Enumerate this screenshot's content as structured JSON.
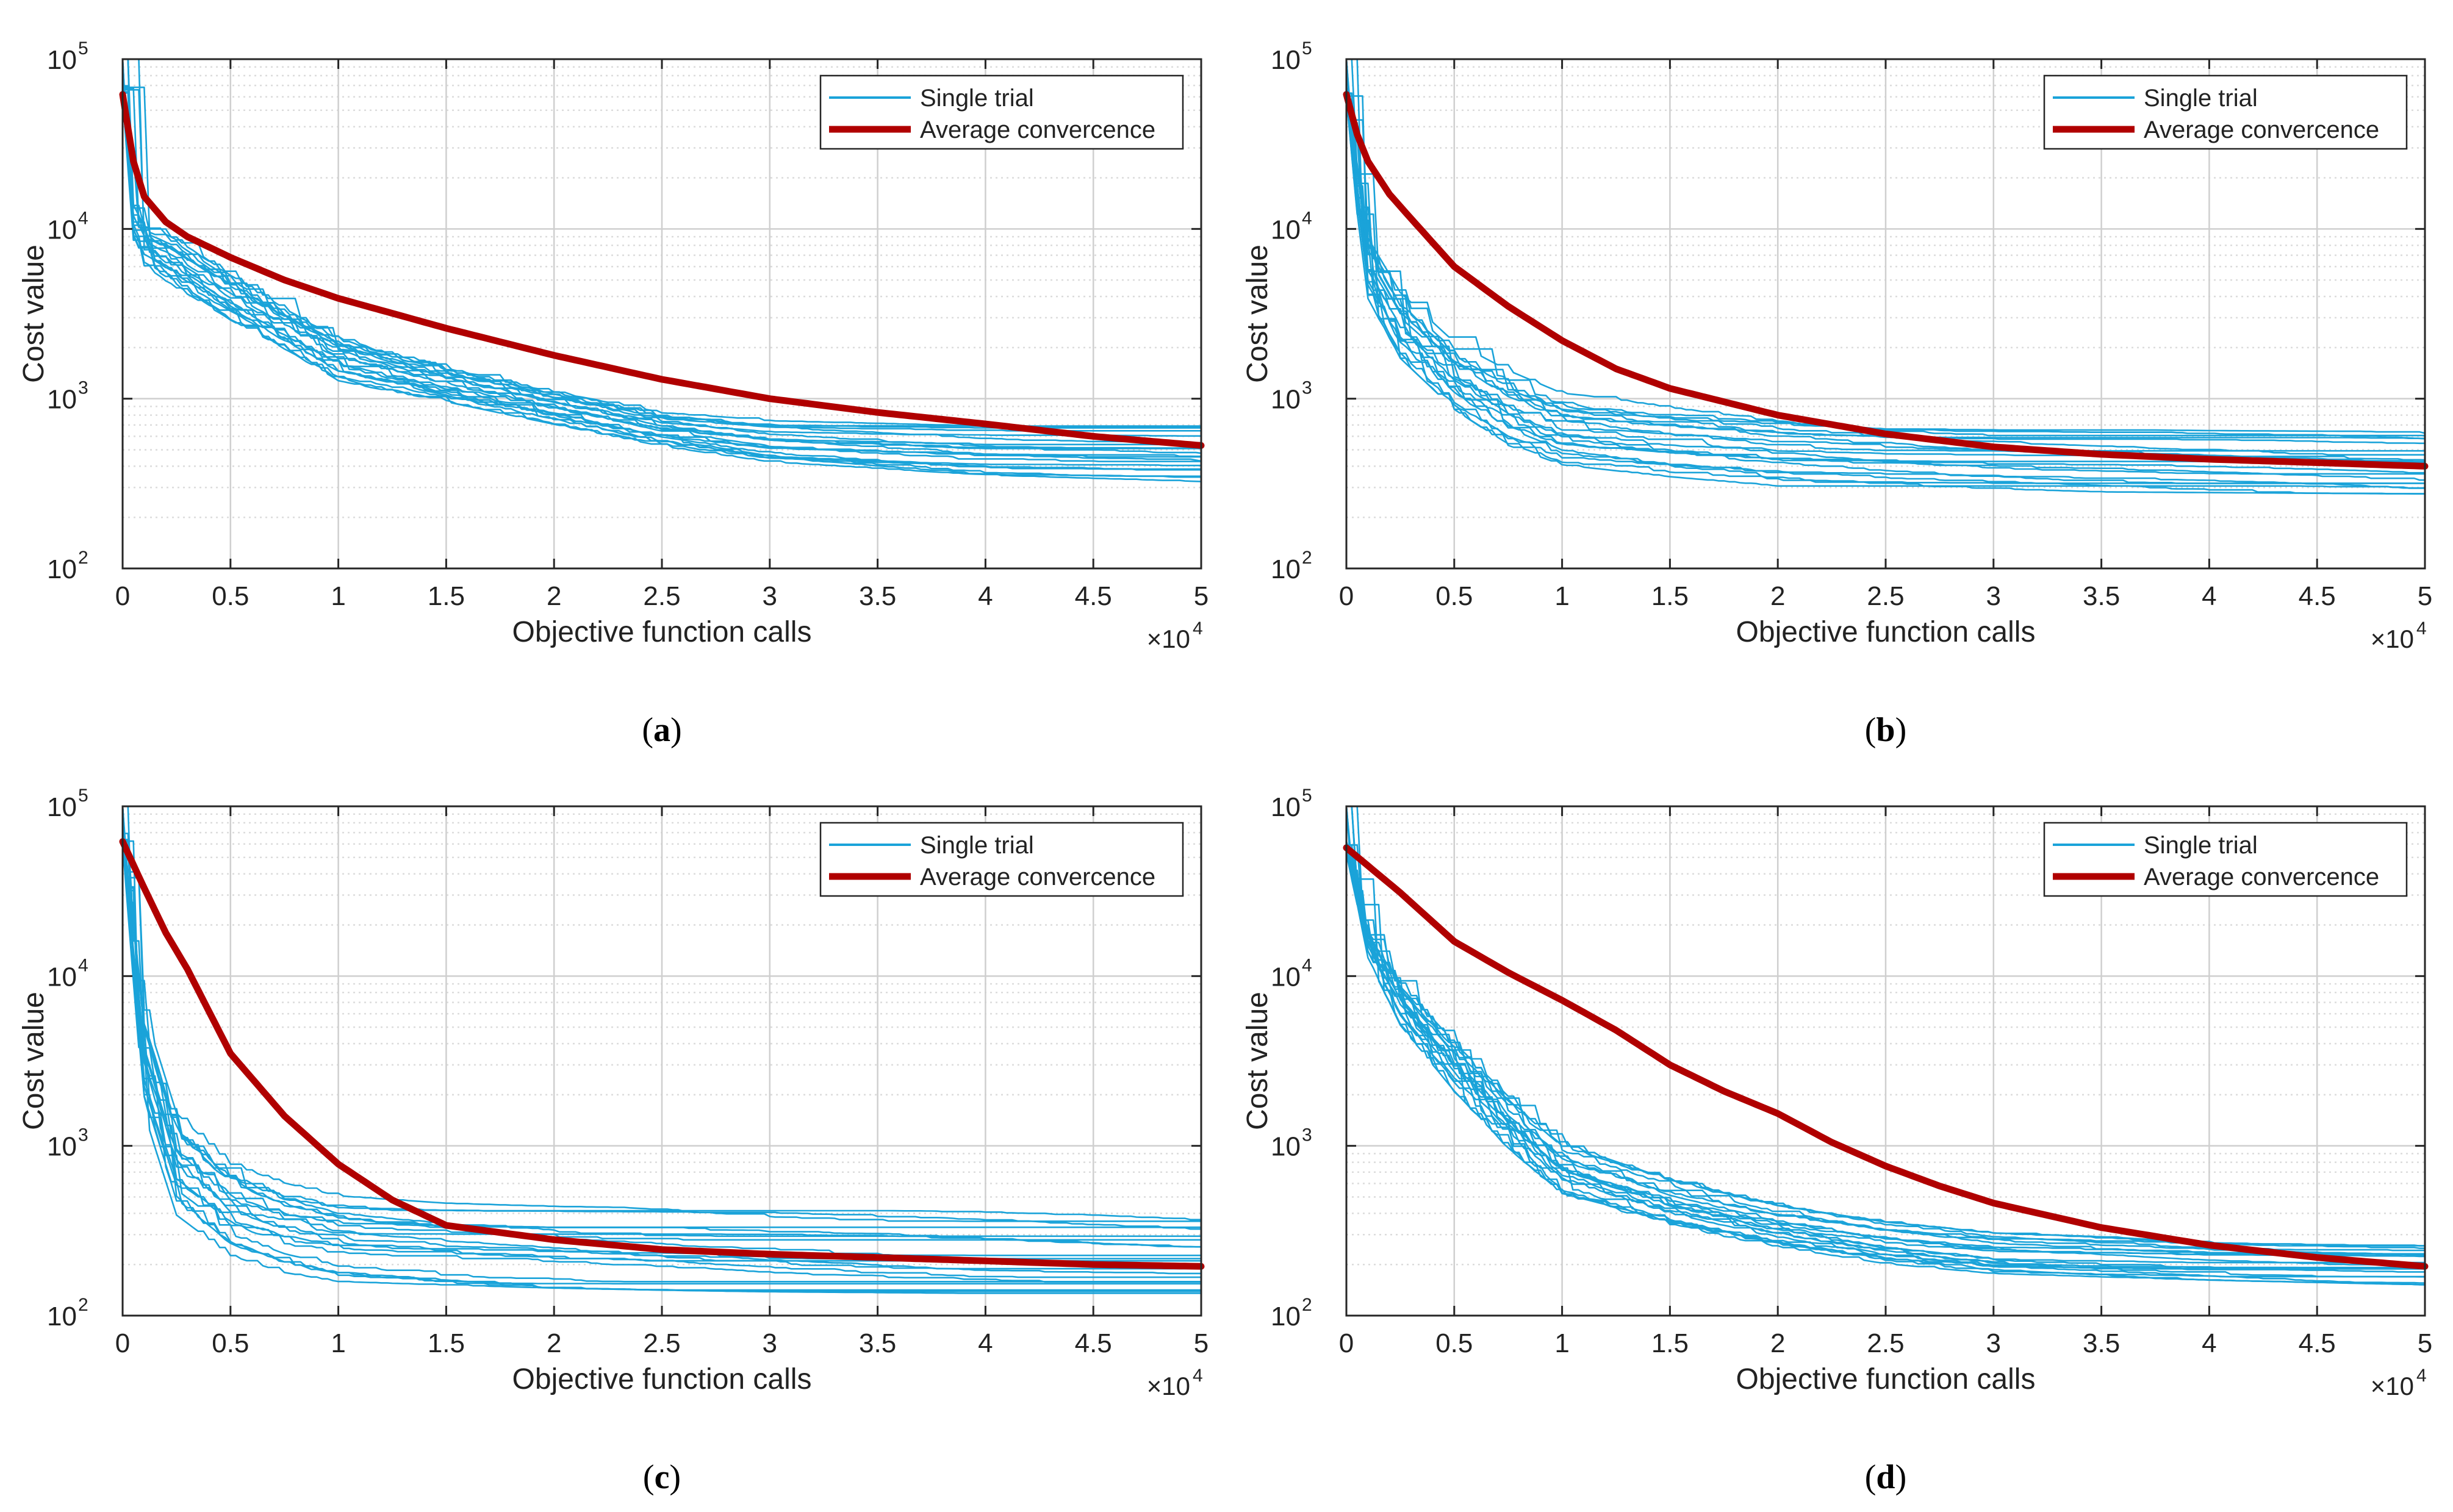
{
  "figure": {
    "panels": [
      {
        "caption_letter": "a"
      },
      {
        "caption_letter": "b"
      },
      {
        "caption_letter": "c"
      },
      {
        "caption_letter": "d"
      }
    ]
  },
  "colors": {
    "single_trial": "#1aa3d9",
    "average": "#b00000",
    "grid": "#cfcfcf",
    "axis": "#262626"
  },
  "chart_data": [
    {
      "type": "line",
      "panel": "a",
      "xlabel": "Objective function calls",
      "ylabel": "Cost value",
      "x_exponent_label": "×10",
      "x_exponent": "4",
      "xlim": [
        0,
        50000
      ],
      "ylim": [
        100,
        100000
      ],
      "yscale": "log",
      "xticks": [
        0,
        5000,
        10000,
        15000,
        20000,
        25000,
        30000,
        35000,
        40000,
        45000,
        50000
      ],
      "xtick_labels": [
        "0",
        "0.5",
        "1",
        "1.5",
        "2",
        "2.5",
        "3",
        "3.5",
        "4",
        "4.5",
        "5"
      ],
      "yticks": [
        100,
        1000,
        10000,
        100000
      ],
      "ytick_base": "10",
      "ytick_exponents": [
        "2",
        "3",
        "4",
        "5"
      ],
      "grid": true,
      "legend_position": "top-right",
      "legend": [
        "Single trial",
        "Average convercence"
      ],
      "trial_count": 20,
      "trial_band_low": [
        60000,
        8500,
        6000,
        4400,
        2800,
        1900,
        1250,
        950,
        700,
        520,
        420,
        350,
        320
      ],
      "trial_band_high": [
        70000,
        14000,
        10500,
        9000,
        5600,
        3600,
        2400,
        1600,
        1150,
        850,
        750,
        700,
        720
      ],
      "series": [
        {
          "name": "Average convercence",
          "x": [
            0,
            500,
            1000,
            2000,
            3000,
            5000,
            7500,
            10000,
            15000,
            20000,
            25000,
            30000,
            35000,
            40000,
            45000,
            50000
          ],
          "y": [
            62000,
            25000,
            15500,
            11000,
            9000,
            6800,
            5000,
            3900,
            2600,
            1800,
            1300,
            1000,
            830,
            710,
            600,
            530
          ]
        }
      ]
    },
    {
      "type": "line",
      "panel": "b",
      "xlabel": "Objective function calls",
      "ylabel": "Cost value",
      "x_exponent_label": "×10",
      "x_exponent": "4",
      "xlim": [
        0,
        50000
      ],
      "ylim": [
        100,
        100000
      ],
      "yscale": "log",
      "xticks": [
        0,
        5000,
        10000,
        15000,
        20000,
        25000,
        30000,
        35000,
        40000,
        45000,
        50000
      ],
      "xtick_labels": [
        "0",
        "0.5",
        "1",
        "1.5",
        "2",
        "2.5",
        "3",
        "3.5",
        "4",
        "4.5",
        "5"
      ],
      "yticks": [
        100,
        1000,
        10000,
        100000
      ],
      "ytick_base": "10",
      "ytick_exponents": [
        "2",
        "3",
        "4",
        "5"
      ],
      "grid": true,
      "legend_position": "top-right",
      "legend": [
        "Single trial",
        "Average convercence"
      ],
      "trial_count": 20,
      "trial_band_low": [
        60000,
        12000,
        3800,
        1700,
        850,
        520,
        400,
        340,
        300,
        290,
        280,
        275,
        270
      ],
      "trial_band_high": [
        70000,
        28000,
        9000,
        4300,
        2200,
        1500,
        1100,
        950,
        820,
        720,
        680,
        660,
        650
      ],
      "series": [
        {
          "name": "Average convercence",
          "x": [
            0,
            500,
            1000,
            2000,
            3000,
            5000,
            7500,
            10000,
            12500,
            15000,
            20000,
            25000,
            30000,
            35000,
            40000,
            45000,
            50000
          ],
          "y": [
            62000,
            36000,
            25000,
            16000,
            11500,
            6000,
            3500,
            2200,
            1500,
            1150,
            800,
            620,
            520,
            470,
            440,
            420,
            400
          ]
        }
      ]
    },
    {
      "type": "line",
      "panel": "c",
      "xlabel": "Objective function calls",
      "ylabel": "Cost value",
      "x_exponent_label": "×10",
      "x_exponent": "4",
      "xlim": [
        0,
        50000
      ],
      "ylim": [
        100,
        100000
      ],
      "yscale": "log",
      "xticks": [
        0,
        5000,
        10000,
        15000,
        20000,
        25000,
        30000,
        35000,
        40000,
        45000,
        50000
      ],
      "xtick_labels": [
        "0",
        "0.5",
        "1",
        "1.5",
        "2",
        "2.5",
        "3",
        "3.5",
        "4",
        "4.5",
        "5"
      ],
      "yticks": [
        100,
        1000,
        10000,
        100000
      ],
      "ytick_base": "10",
      "ytick_exponents": [
        "2",
        "3",
        "4",
        "5"
      ],
      "grid": true,
      "legend_position": "top-right",
      "legend": [
        "Single trial",
        "Average convercence"
      ],
      "trial_count": 20,
      "trial_band_low": [
        60000,
        9000,
        1500,
        380,
        220,
        175,
        155,
        148,
        142,
        138,
        135,
        132,
        130
      ],
      "trial_band_high": [
        72000,
        24000,
        6500,
        1600,
        800,
        620,
        520,
        470,
        450,
        440,
        430,
        420,
        420
      ],
      "series": [
        {
          "name": "Average convercence",
          "x": [
            0,
            1000,
            2000,
            3000,
            5000,
            7500,
            10000,
            12500,
            15000,
            20000,
            25000,
            30000,
            35000,
            40000,
            45000,
            50000
          ],
          "y": [
            62000,
            33000,
            18000,
            11000,
            3500,
            1500,
            780,
            480,
            340,
            280,
            245,
            230,
            220,
            210,
            200,
            195
          ]
        }
      ]
    },
    {
      "type": "line",
      "panel": "d",
      "xlabel": "Objective function calls",
      "ylabel": "Cost value",
      "x_exponent_label": "×10",
      "x_exponent": "4",
      "xlim": [
        0,
        50000
      ],
      "ylim": [
        100,
        100000
      ],
      "yscale": "log",
      "xticks": [
        0,
        5000,
        10000,
        15000,
        20000,
        25000,
        30000,
        35000,
        40000,
        45000,
        50000
      ],
      "xtick_labels": [
        "0",
        "0.5",
        "1",
        "1.5",
        "2",
        "2.5",
        "3",
        "3.5",
        "4",
        "4.5",
        "5"
      ],
      "yticks": [
        100,
        1000,
        10000,
        100000
      ],
      "ytick_base": "10",
      "ytick_exponents": [
        "2",
        "3",
        "4",
        "5"
      ],
      "grid": true,
      "legend_position": "top-right",
      "legend": [
        "Single trial",
        "Average convercence"
      ],
      "trial_count": 20,
      "trial_band_low": [
        52000,
        26000,
        12500,
        5000,
        2000,
        900,
        480,
        320,
        245,
        200,
        175,
        160,
        150
      ],
      "trial_band_high": [
        64000,
        36000,
        19000,
        9500,
        4200,
        2000,
        1050,
        640,
        450,
        360,
        310,
        280,
        280
      ],
      "series": [
        {
          "name": "Average convercence",
          "x": [
            0,
            2500,
            5000,
            7500,
            10000,
            12500,
            15000,
            17500,
            20000,
            22500,
            25000,
            27500,
            30000,
            35000,
            40000,
            45000,
            50000
          ],
          "y": [
            57000,
            31000,
            16000,
            10500,
            7200,
            4800,
            3000,
            2100,
            1550,
            1050,
            760,
            580,
            460,
            330,
            260,
            220,
            195
          ]
        }
      ]
    }
  ]
}
